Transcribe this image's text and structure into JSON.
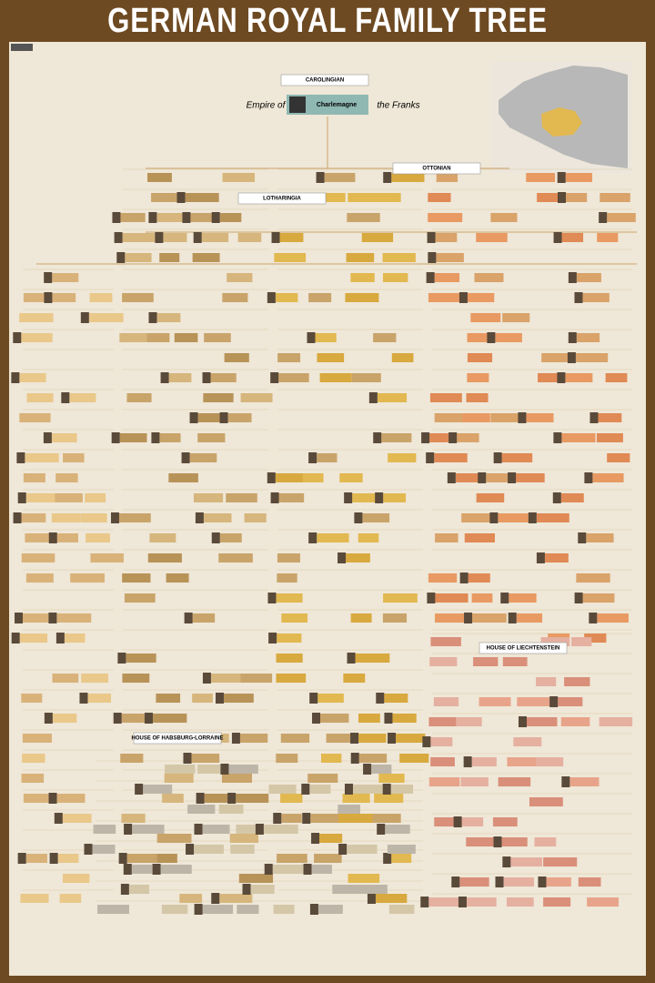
{
  "header": {
    "title": "GERMAN ROYAL FAMILY TREE"
  },
  "banner": {
    "left": "Empire of",
    "name": "Charlemagne",
    "right": "the Franks"
  },
  "labels": [
    "CAROLINGIAN",
    "OTTONIAN",
    "LOTHARINGIA",
    "HOUSE OF LIECHTENSTEIN",
    "HOUSE OF HABSBURG-LORRAINE"
  ]
}
